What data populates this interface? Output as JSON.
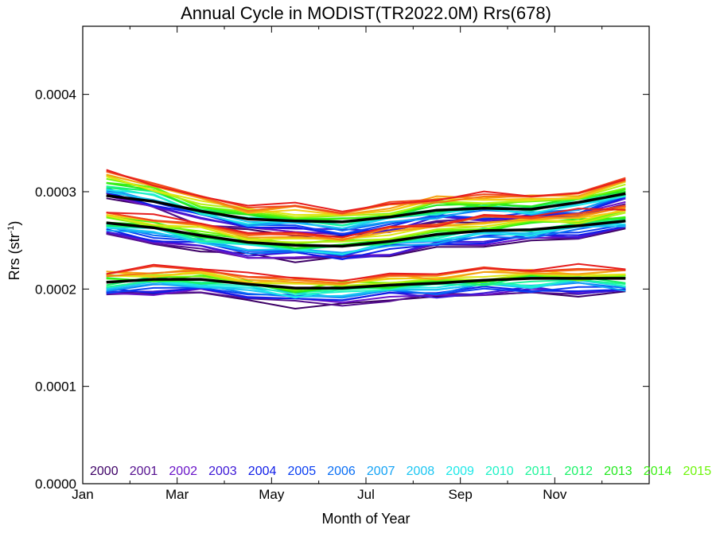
{
  "chart_data": {
    "type": "line",
    "title": "Annual Cycle in MODIST(TR2022.0M) Rrs(678)",
    "xlabel": "Month of Year",
    "ylabel_main": "Rrs (str",
    "ylabel_sup": "-1",
    "ylabel_close": ")",
    "xlim": [
      0,
      12
    ],
    "ylim": [
      0,
      0.00047
    ],
    "x_ticks": [
      {
        "value": 0,
        "label": "Jan"
      },
      {
        "value": 2,
        "label": "Mar"
      },
      {
        "value": 4,
        "label": "May"
      },
      {
        "value": 6,
        "label": "Jul"
      },
      {
        "value": 8,
        "label": "Sep"
      },
      {
        "value": 10,
        "label": "Nov"
      }
    ],
    "y_ticks": [
      {
        "value": 0,
        "label": "0.0000"
      },
      {
        "value": 0.0001,
        "label": "0.0001"
      },
      {
        "value": 0.0002,
        "label": "0.0002"
      },
      {
        "value": 0.0003,
        "label": "0.0003"
      },
      {
        "value": 0.0004,
        "label": "0.0004"
      }
    ],
    "x": [
      0.5,
      1.5,
      2.5,
      3.5,
      4.5,
      5.5,
      6.5,
      7.5,
      8.5,
      9.5,
      10.5,
      11.5
    ],
    "legend": [
      {
        "label": "2000",
        "color": "#3d0066"
      },
      {
        "label": "2001",
        "color": "#55108f"
      },
      {
        "label": "2002",
        "color": "#6a14c8"
      },
      {
        "label": "2003",
        "color": "#3c17d6"
      },
      {
        "label": "2004",
        "color": "#0f1de8"
      },
      {
        "label": "2005",
        "color": "#0a3ff2"
      },
      {
        "label": "2006",
        "color": "#0a6ff5"
      },
      {
        "label": "2007",
        "color": "#14a3f5"
      },
      {
        "label": "2008",
        "color": "#1cc6f2"
      },
      {
        "label": "2009",
        "color": "#1de8e8"
      },
      {
        "label": "2010",
        "color": "#1ef2c6"
      },
      {
        "label": "2011",
        "color": "#1ff59a"
      },
      {
        "label": "2012",
        "color": "#19f266"
      },
      {
        "label": "2013",
        "color": "#23e81e"
      },
      {
        "label": "2014",
        "color": "#3cf014"
      },
      {
        "label": "2015",
        "color": "#6ef50a"
      }
    ],
    "extra_line_colors": [
      "#b4f014",
      "#e0e614",
      "#f5c814",
      "#f5a014",
      "#f57814",
      "#f0461e",
      "#e61e1e"
    ],
    "series": [
      {
        "band": "upper",
        "values": [
          0.000307,
          0.000298,
          0.000282,
          0.000274,
          0.000272,
          0.000268,
          0.000274,
          0.000282,
          0.000285,
          0.000284,
          0.000289,
          0.0003
        ]
      },
      {
        "band": "middle",
        "values": [
          0.000268,
          0.000262,
          0.000254,
          0.000247,
          0.000244,
          0.000243,
          0.000249,
          0.000256,
          0.00026,
          0.000262,
          0.000266,
          0.000272
        ]
      },
      {
        "band": "lower",
        "values": [
          0.000207,
          0.000209,
          0.000208,
          0.000203,
          0.000198,
          0.000199,
          0.000203,
          0.000205,
          0.000208,
          0.000209,
          0.000209,
          0.000208
        ]
      },
      {
        "band": "mean-upper",
        "values": [
          0.000296,
          0.00029,
          0.00028,
          0.000272,
          0.00027,
          0.000269,
          0.000274,
          0.000281,
          0.000283,
          0.000282,
          0.000289,
          0.000298
        ]
      },
      {
        "band": "mean-middle",
        "values": [
          0.000268,
          0.000263,
          0.000255,
          0.000248,
          0.000245,
          0.000244,
          0.000249,
          0.000256,
          0.00026,
          0.000261,
          0.000265,
          0.00027
        ]
      },
      {
        "band": "mean-lower",
        "values": [
          0.000207,
          0.00021,
          0.00021,
          0.000205,
          0.000201,
          0.000201,
          0.000204,
          0.000206,
          0.000209,
          0.000211,
          0.000211,
          0.000211
        ]
      }
    ]
  }
}
